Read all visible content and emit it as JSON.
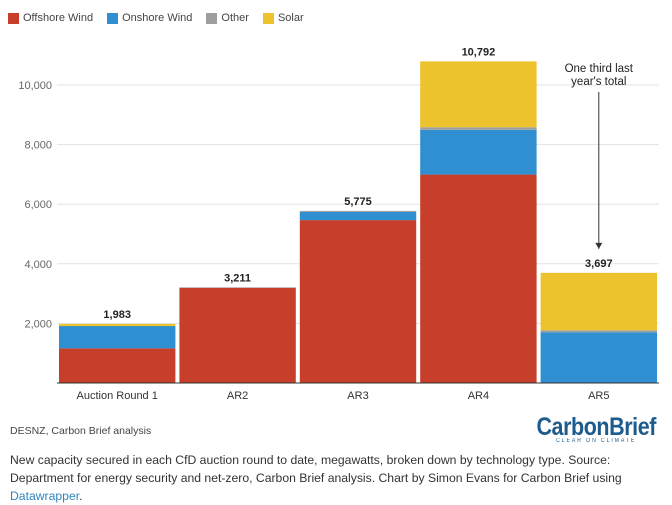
{
  "legend": [
    {
      "label": "Offshore Wind",
      "color": "#c73e2a"
    },
    {
      "label": "Onshore Wind",
      "color": "#2f8fd0"
    },
    {
      "label": "Other",
      "color": "#9e9e9e"
    },
    {
      "label": "Solar",
      "color": "#edc32d"
    }
  ],
  "chart_data": {
    "type": "bar",
    "stacked": true,
    "categories": [
      "Auction Round 1",
      "AR2",
      "AR3",
      "AR4",
      "AR5"
    ],
    "series": [
      {
        "name": "Offshore Wind",
        "color": "#c73e2a",
        "values": [
          1162,
          3196,
          5466,
          6994,
          0
        ]
      },
      {
        "name": "Onshore Wind",
        "color": "#2f8fd0",
        "values": [
          749,
          0,
          275,
          1501,
          1704
        ]
      },
      {
        "name": "Other",
        "color": "#9e9e9e",
        "values": [
          0,
          15,
          34,
          88,
          65
        ]
      },
      {
        "name": "Solar",
        "color": "#edc32d",
        "values": [
          72,
          0,
          0,
          2209,
          1928
        ]
      }
    ],
    "totals": [
      "1,983",
      "3,211",
      "5,775",
      "10,792",
      "3,697"
    ],
    "y_ticks": [
      2000,
      4000,
      6000,
      8000,
      10000
    ],
    "y_tick_labels": [
      "2,000",
      "4,000",
      "6,000",
      "8,000",
      "10,000"
    ],
    "ylim": [
      0,
      11500
    ],
    "grid": true,
    "legend_position": "top-left",
    "annotation": {
      "lines": [
        "One third last",
        "year's total"
      ],
      "category": "AR5"
    }
  },
  "source_note": "DESNZ, Carbon Brief analysis",
  "logo": {
    "name": "CarbonBrief",
    "tagline": "CLEAR ON CLIMATE"
  },
  "caption": {
    "text": "New capacity secured in each CfD auction round to date, megawatts, broken down by technology type. Source: Department for energy security and net-zero, Carbon Brief analysis. Chart by Simon Evans for Carbon Brief using ",
    "link": "Datawrapper",
    "end": "."
  }
}
